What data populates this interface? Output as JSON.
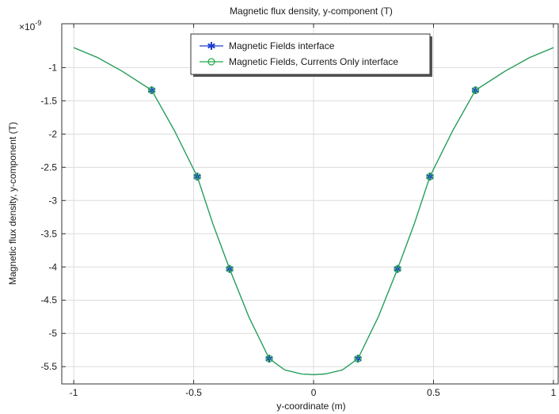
{
  "chart_data": {
    "type": "line",
    "title": "Magnetic flux density, y-component (T)",
    "xlabel": "y-coordinate (m)",
    "ylabel": "Magnetic flux density, y-component (T)",
    "y_multiplier": "×10",
    "y_exponent": "-9",
    "xlim": [
      -1.05,
      1.02
    ],
    "ylim": [
      -5.76,
      -0.34
    ],
    "xticks": [
      -1,
      -0.5,
      0,
      0.5,
      1
    ],
    "xtick_labels": [
      "-1",
      "-0.5",
      "0",
      "0.5",
      "1"
    ],
    "yticks": [
      -1,
      -1.5,
      -2,
      -2.5,
      -3,
      -3.5,
      -4,
      -4.5,
      -5,
      -5.5
    ],
    "ytick_labels": [
      "-1",
      "-1.5",
      "-2",
      "-2.5",
      "-3",
      "-3.5",
      "-4",
      "-4.5",
      "-5",
      "-5.5"
    ],
    "grid": true,
    "legend_position": "top-center",
    "series": [
      {
        "name": "Magnetic Fields interface",
        "color": "#1f3fcf",
        "marker": "asterisk",
        "x": [
          -1,
          -0.9,
          -0.8,
          -0.675,
          -0.58,
          -0.485,
          -0.42,
          -0.35,
          -0.27,
          -0.185,
          -0.12,
          -0.05,
          0,
          0.05,
          0.12,
          0.185,
          0.27,
          0.35,
          0.42,
          0.485,
          0.58,
          0.675,
          0.8,
          0.9,
          1
        ],
        "y": [
          -0.7,
          -0.85,
          -1.05,
          -1.34,
          -1.95,
          -2.64,
          -3.35,
          -4.03,
          -4.75,
          -5.38,
          -5.55,
          -5.61,
          -5.62,
          -5.61,
          -5.55,
          -5.38,
          -4.75,
          -4.03,
          -3.35,
          -2.64,
          -1.95,
          -1.34,
          -1.05,
          -0.85,
          -0.7
        ],
        "marker_x": [
          -0.675,
          -0.485,
          -0.35,
          -0.185,
          0.185,
          0.35,
          0.485,
          0.675
        ],
        "marker_y": [
          -1.34,
          -2.64,
          -4.03,
          -5.38,
          -5.38,
          -4.03,
          -2.64,
          -1.34
        ]
      },
      {
        "name": "Magnetic Fields, Currents Only interface",
        "color": "#22a846",
        "marker": "circle",
        "x": [
          -1,
          -0.9,
          -0.8,
          -0.675,
          -0.58,
          -0.485,
          -0.42,
          -0.35,
          -0.27,
          -0.185,
          -0.12,
          -0.05,
          0,
          0.05,
          0.12,
          0.185,
          0.27,
          0.35,
          0.42,
          0.485,
          0.58,
          0.675,
          0.8,
          0.9,
          1
        ],
        "y": [
          -0.7,
          -0.85,
          -1.05,
          -1.34,
          -1.95,
          -2.64,
          -3.35,
          -4.03,
          -4.75,
          -5.38,
          -5.55,
          -5.61,
          -5.62,
          -5.61,
          -5.55,
          -5.38,
          -4.75,
          -4.03,
          -3.35,
          -2.64,
          -1.95,
          -1.34,
          -1.05,
          -0.85,
          -0.7
        ],
        "marker_x": [
          -0.675,
          -0.485,
          -0.35,
          -0.185,
          0.185,
          0.35,
          0.485,
          0.675
        ],
        "marker_y": [
          -1.34,
          -2.64,
          -4.03,
          -5.38,
          -5.38,
          -4.03,
          -2.64,
          -1.34
        ]
      }
    ]
  }
}
